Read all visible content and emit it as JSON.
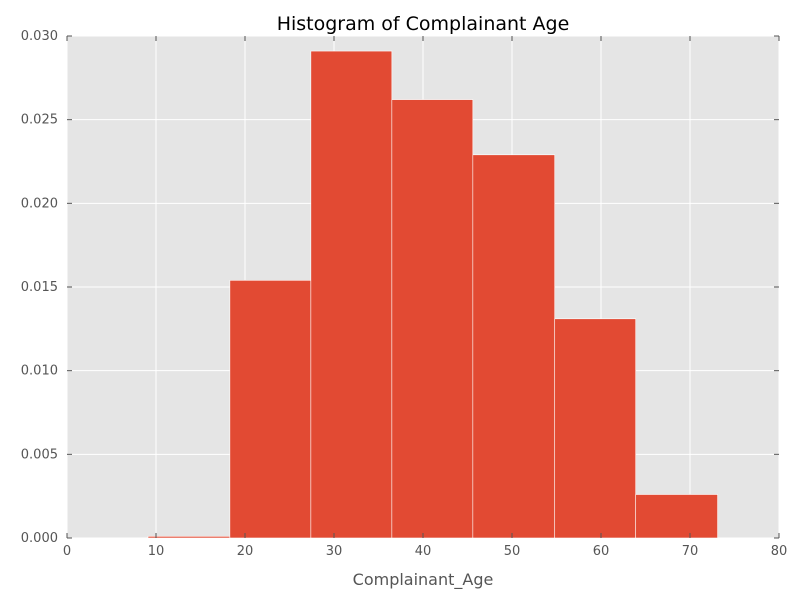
{
  "chart_data": {
    "type": "bar",
    "title": "Histogram of Complainant Age",
    "xlabel": "Complainant_Age",
    "ylabel": "",
    "xlim": [
      0,
      80
    ],
    "ylim": [
      0,
      0.03
    ],
    "grid": true,
    "xticks": [
      0,
      10,
      20,
      30,
      40,
      50,
      60,
      70,
      80
    ],
    "yticks": [
      0.0,
      0.005,
      0.01,
      0.015,
      0.02,
      0.025,
      0.03
    ],
    "bins": [
      {
        "x0": 9.1,
        "x1": 18.3,
        "value": 0.0001
      },
      {
        "x0": 18.3,
        "x1": 27.4,
        "value": 0.0154
      },
      {
        "x0": 27.4,
        "x1": 36.5,
        "value": 0.0291
      },
      {
        "x0": 36.5,
        "x1": 45.6,
        "value": 0.0262
      },
      {
        "x0": 45.6,
        "x1": 54.8,
        "value": 0.0229
      },
      {
        "x0": 54.8,
        "x1": 63.9,
        "value": 0.0131
      },
      {
        "x0": 63.9,
        "x1": 73.1,
        "value": 0.0026
      }
    ],
    "bar_color": "#E24A33"
  }
}
